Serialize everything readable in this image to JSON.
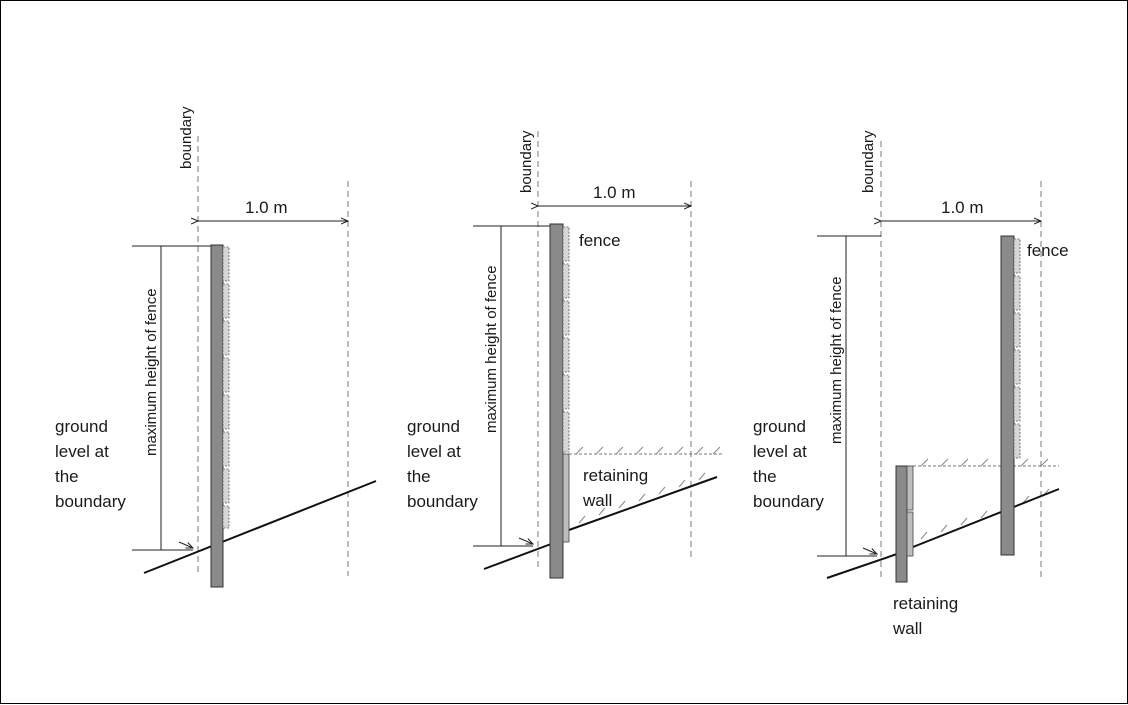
{
  "colors": {
    "post_fill": "#8a8a8a",
    "panel_fill": "#d6d6d6",
    "line": "#111111"
  },
  "panels": [
    {
      "boundary_label": "boundary",
      "distance_label": "1.0 m",
      "height_label": "maximum height of fence",
      "ground_label": [
        "ground",
        "level at",
        "the",
        "boundary"
      ]
    },
    {
      "boundary_label": "boundary",
      "distance_label": "1.0 m",
      "height_label": "maximum height of fence",
      "ground_label": [
        "ground",
        "level at",
        "the",
        "boundary"
      ],
      "fence_label": "fence",
      "wall_label": [
        "retaining",
        "wall"
      ]
    },
    {
      "boundary_label": "boundary",
      "distance_label": "1.0 m",
      "height_label": "maximum height of fence",
      "ground_label": [
        "ground",
        "level at",
        "the",
        "boundary"
      ],
      "fence_label": "fence",
      "wall_label": [
        "retaining",
        "wall"
      ]
    }
  ]
}
